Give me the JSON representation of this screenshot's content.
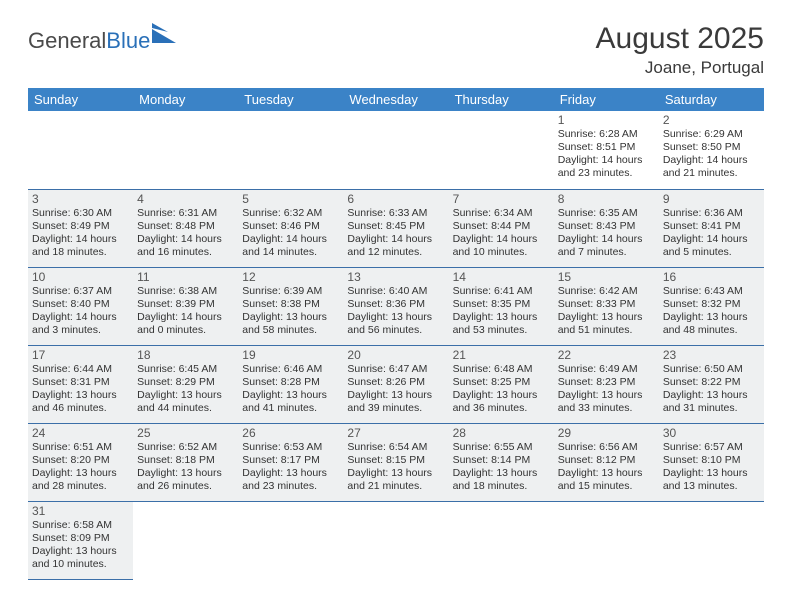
{
  "logo": {
    "textA": "General",
    "textB": "Blue",
    "icon_color": "#2a70b8",
    "textA_color": "#4a4a4a"
  },
  "header": {
    "month": "August 2025",
    "location": "Joane, Portugal"
  },
  "colors": {
    "header_bg": "#3b83c7",
    "header_fg": "#ffffff",
    "cell_bg": "#eef0f1",
    "rule": "#3b6fa8"
  },
  "weekdays": [
    "Sunday",
    "Monday",
    "Tuesday",
    "Wednesday",
    "Thursday",
    "Friday",
    "Saturday"
  ],
  "weeks": [
    [
      null,
      null,
      null,
      null,
      null,
      {
        "n": "1",
        "sr": "Sunrise: 6:28 AM",
        "ss": "Sunset: 8:51 PM",
        "d1": "Daylight: 14 hours",
        "d2": "and 23 minutes."
      },
      {
        "n": "2",
        "sr": "Sunrise: 6:29 AM",
        "ss": "Sunset: 8:50 PM",
        "d1": "Daylight: 14 hours",
        "d2": "and 21 minutes."
      }
    ],
    [
      {
        "n": "3",
        "sr": "Sunrise: 6:30 AM",
        "ss": "Sunset: 8:49 PM",
        "d1": "Daylight: 14 hours",
        "d2": "and 18 minutes."
      },
      {
        "n": "4",
        "sr": "Sunrise: 6:31 AM",
        "ss": "Sunset: 8:48 PM",
        "d1": "Daylight: 14 hours",
        "d2": "and 16 minutes."
      },
      {
        "n": "5",
        "sr": "Sunrise: 6:32 AM",
        "ss": "Sunset: 8:46 PM",
        "d1": "Daylight: 14 hours",
        "d2": "and 14 minutes."
      },
      {
        "n": "6",
        "sr": "Sunrise: 6:33 AM",
        "ss": "Sunset: 8:45 PM",
        "d1": "Daylight: 14 hours",
        "d2": "and 12 minutes."
      },
      {
        "n": "7",
        "sr": "Sunrise: 6:34 AM",
        "ss": "Sunset: 8:44 PM",
        "d1": "Daylight: 14 hours",
        "d2": "and 10 minutes."
      },
      {
        "n": "8",
        "sr": "Sunrise: 6:35 AM",
        "ss": "Sunset: 8:43 PM",
        "d1": "Daylight: 14 hours",
        "d2": "and 7 minutes."
      },
      {
        "n": "9",
        "sr": "Sunrise: 6:36 AM",
        "ss": "Sunset: 8:41 PM",
        "d1": "Daylight: 14 hours",
        "d2": "and 5 minutes."
      }
    ],
    [
      {
        "n": "10",
        "sr": "Sunrise: 6:37 AM",
        "ss": "Sunset: 8:40 PM",
        "d1": "Daylight: 14 hours",
        "d2": "and 3 minutes."
      },
      {
        "n": "11",
        "sr": "Sunrise: 6:38 AM",
        "ss": "Sunset: 8:39 PM",
        "d1": "Daylight: 14 hours",
        "d2": "and 0 minutes."
      },
      {
        "n": "12",
        "sr": "Sunrise: 6:39 AM",
        "ss": "Sunset: 8:38 PM",
        "d1": "Daylight: 13 hours",
        "d2": "and 58 minutes."
      },
      {
        "n": "13",
        "sr": "Sunrise: 6:40 AM",
        "ss": "Sunset: 8:36 PM",
        "d1": "Daylight: 13 hours",
        "d2": "and 56 minutes."
      },
      {
        "n": "14",
        "sr": "Sunrise: 6:41 AM",
        "ss": "Sunset: 8:35 PM",
        "d1": "Daylight: 13 hours",
        "d2": "and 53 minutes."
      },
      {
        "n": "15",
        "sr": "Sunrise: 6:42 AM",
        "ss": "Sunset: 8:33 PM",
        "d1": "Daylight: 13 hours",
        "d2": "and 51 minutes."
      },
      {
        "n": "16",
        "sr": "Sunrise: 6:43 AM",
        "ss": "Sunset: 8:32 PM",
        "d1": "Daylight: 13 hours",
        "d2": "and 48 minutes."
      }
    ],
    [
      {
        "n": "17",
        "sr": "Sunrise: 6:44 AM",
        "ss": "Sunset: 8:31 PM",
        "d1": "Daylight: 13 hours",
        "d2": "and 46 minutes."
      },
      {
        "n": "18",
        "sr": "Sunrise: 6:45 AM",
        "ss": "Sunset: 8:29 PM",
        "d1": "Daylight: 13 hours",
        "d2": "and 44 minutes."
      },
      {
        "n": "19",
        "sr": "Sunrise: 6:46 AM",
        "ss": "Sunset: 8:28 PM",
        "d1": "Daylight: 13 hours",
        "d2": "and 41 minutes."
      },
      {
        "n": "20",
        "sr": "Sunrise: 6:47 AM",
        "ss": "Sunset: 8:26 PM",
        "d1": "Daylight: 13 hours",
        "d2": "and 39 minutes."
      },
      {
        "n": "21",
        "sr": "Sunrise: 6:48 AM",
        "ss": "Sunset: 8:25 PM",
        "d1": "Daylight: 13 hours",
        "d2": "and 36 minutes."
      },
      {
        "n": "22",
        "sr": "Sunrise: 6:49 AM",
        "ss": "Sunset: 8:23 PM",
        "d1": "Daylight: 13 hours",
        "d2": "and 33 minutes."
      },
      {
        "n": "23",
        "sr": "Sunrise: 6:50 AM",
        "ss": "Sunset: 8:22 PM",
        "d1": "Daylight: 13 hours",
        "d2": "and 31 minutes."
      }
    ],
    [
      {
        "n": "24",
        "sr": "Sunrise: 6:51 AM",
        "ss": "Sunset: 8:20 PM",
        "d1": "Daylight: 13 hours",
        "d2": "and 28 minutes."
      },
      {
        "n": "25",
        "sr": "Sunrise: 6:52 AM",
        "ss": "Sunset: 8:18 PM",
        "d1": "Daylight: 13 hours",
        "d2": "and 26 minutes."
      },
      {
        "n": "26",
        "sr": "Sunrise: 6:53 AM",
        "ss": "Sunset: 8:17 PM",
        "d1": "Daylight: 13 hours",
        "d2": "and 23 minutes."
      },
      {
        "n": "27",
        "sr": "Sunrise: 6:54 AM",
        "ss": "Sunset: 8:15 PM",
        "d1": "Daylight: 13 hours",
        "d2": "and 21 minutes."
      },
      {
        "n": "28",
        "sr": "Sunrise: 6:55 AM",
        "ss": "Sunset: 8:14 PM",
        "d1": "Daylight: 13 hours",
        "d2": "and 18 minutes."
      },
      {
        "n": "29",
        "sr": "Sunrise: 6:56 AM",
        "ss": "Sunset: 8:12 PM",
        "d1": "Daylight: 13 hours",
        "d2": "and 15 minutes."
      },
      {
        "n": "30",
        "sr": "Sunrise: 6:57 AM",
        "ss": "Sunset: 8:10 PM",
        "d1": "Daylight: 13 hours",
        "d2": "and 13 minutes."
      }
    ],
    [
      {
        "n": "31",
        "sr": "Sunrise: 6:58 AM",
        "ss": "Sunset: 8:09 PM",
        "d1": "Daylight: 13 hours",
        "d2": "and 10 minutes."
      },
      null,
      null,
      null,
      null,
      null,
      null
    ]
  ]
}
